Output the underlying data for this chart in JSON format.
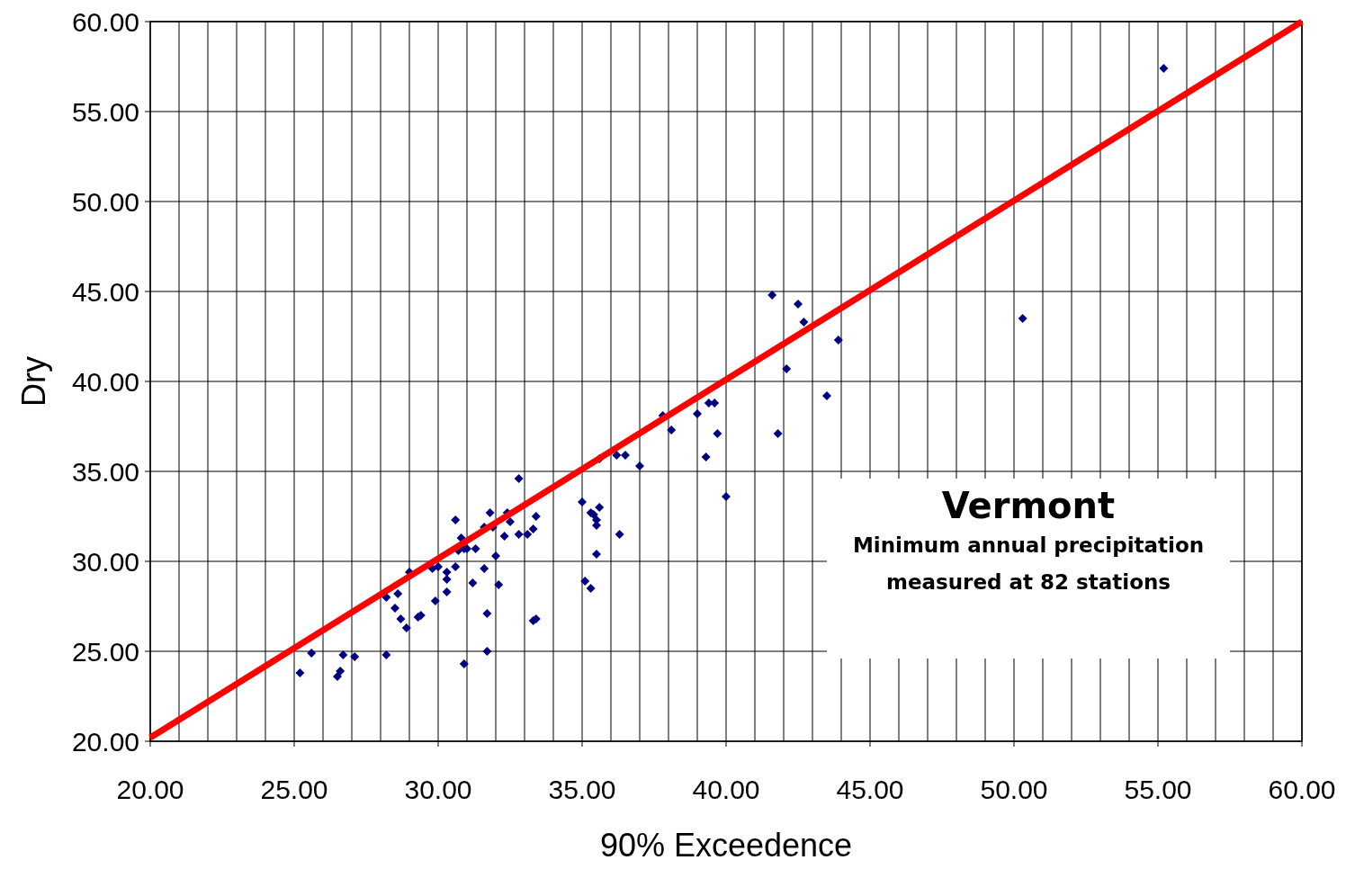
{
  "chart_data": {
    "type": "scatter",
    "title": "Vermont",
    "subtitle": "Minimum annual precipitation measured at 82 stations",
    "xlabel": "90% Exceedence",
    "ylabel": "Dry",
    "xlim": [
      20,
      60
    ],
    "ylim": [
      20,
      60
    ],
    "xticks": [
      {
        "value": 20,
        "label": "20.00"
      },
      {
        "value": 25,
        "label": "25.00"
      },
      {
        "value": 30,
        "label": "30.00"
      },
      {
        "value": 35,
        "label": "35.00"
      },
      {
        "value": 40,
        "label": "40.00"
      },
      {
        "value": 45,
        "label": "45.00"
      },
      {
        "value": 50,
        "label": "50.00"
      },
      {
        "value": 55,
        "label": "55.00"
      },
      {
        "value": 60,
        "label": "60.00"
      }
    ],
    "yticks": [
      {
        "value": 20,
        "label": "20.00"
      },
      {
        "value": 25,
        "label": "25.00"
      },
      {
        "value": 30,
        "label": "30.00"
      },
      {
        "value": 35,
        "label": "35.00"
      },
      {
        "value": 40,
        "label": "40.00"
      },
      {
        "value": 45,
        "label": "45.00"
      },
      {
        "value": 50,
        "label": "50.00"
      },
      {
        "value": 55,
        "label": "55.00"
      },
      {
        "value": 60,
        "label": "60.00"
      }
    ],
    "grid": true,
    "series": [
      {
        "color": "#000080",
        "marker": "diamond",
        "x": [
          25.2,
          25.6,
          26.5,
          26.6,
          26.7,
          27.1,
          28.2,
          28.2,
          28.5,
          28.6,
          28.7,
          28.9,
          29.0,
          29.3,
          29.4,
          29.8,
          29.9,
          30.0,
          30.3,
          30.3,
          30.3,
          30.6,
          30.6,
          30.7,
          30.8,
          30.9,
          30.9,
          31.0,
          31.2,
          31.3,
          31.6,
          31.6,
          31.7,
          31.7,
          31.8,
          31.9,
          32.0,
          32.1,
          32.3,
          32.4,
          32.5,
          32.8,
          32.8,
          33.1,
          33.3,
          33.3,
          33.4,
          33.4,
          35.0,
          35.1,
          35.3,
          35.3,
          35.4,
          35.5,
          35.5,
          35.6,
          35.5,
          35.6,
          36.3,
          36.2,
          36.5,
          37.0,
          37.8,
          38.1,
          39.0,
          39.3,
          39.4,
          39.6,
          39.7,
          40.0,
          41.6,
          41.8,
          42.1,
          42.5,
          42.7,
          43.5,
          43.9,
          50.3,
          55.2
        ],
        "values": [
          23.8,
          24.9,
          23.6,
          23.9,
          24.8,
          24.7,
          24.8,
          28.0,
          27.4,
          28.2,
          26.8,
          26.3,
          29.4,
          26.9,
          27.0,
          29.6,
          27.8,
          29.7,
          29.4,
          29.0,
          28.3,
          32.3,
          29.7,
          30.6,
          31.3,
          30.7,
          24.3,
          30.7,
          28.8,
          30.7,
          31.9,
          29.6,
          25.0,
          27.1,
          32.7,
          31.9,
          30.3,
          28.7,
          31.4,
          32.7,
          32.2,
          31.5,
          34.6,
          31.5,
          31.8,
          26.7,
          26.8,
          32.5,
          33.3,
          28.9,
          32.7,
          28.5,
          32.6,
          32.3,
          30.4,
          33.0,
          32.0,
          35.7,
          31.5,
          35.9,
          35.9,
          35.3,
          38.1,
          37.3,
          38.2,
          35.8,
          38.8,
          38.8,
          37.1,
          33.6,
          44.8,
          37.1,
          40.7,
          44.3,
          43.3,
          39.2,
          42.3,
          43.5,
          57.4
        ]
      },
      {
        "type": "line",
        "color": "#ff0000",
        "line_style": "solid",
        "x": [
          20,
          60
        ],
        "values": [
          20.2,
          60
        ]
      }
    ]
  }
}
